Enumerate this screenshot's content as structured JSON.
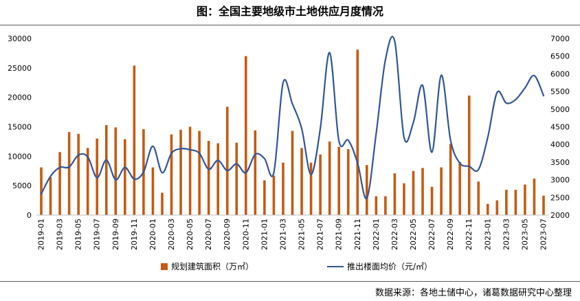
{
  "source": "数据来源：各地土储中心，诸葛数据研究中心整理",
  "chart_data": {
    "type": "bar",
    "title": "图：全国主要地级市土地供应月度情况",
    "x": [
      "2019-01",
      "2019-02",
      "2019-03",
      "2019-04",
      "2019-05",
      "2019-06",
      "2019-07",
      "2019-08",
      "2019-09",
      "2019-10",
      "2019-11",
      "2019-12",
      "2020-01",
      "2020-02",
      "2020-03",
      "2020-04",
      "2020-05",
      "2020-06",
      "2020-07",
      "2020-08",
      "2020-09",
      "2020-10",
      "2020-11",
      "2020-12",
      "2021-01",
      "2021-02",
      "2021-03",
      "2021-04",
      "2021-05",
      "2021-06",
      "2021-07",
      "2021-08",
      "2021-09",
      "2021-10",
      "2021-11",
      "2021-12",
      "2022-01",
      "2022-02",
      "2022-03",
      "2022-04",
      "2022-05",
      "2022-06",
      "2022-07",
      "2022-08",
      "2022-09",
      "2022-10",
      "2022-11",
      "2022-12",
      "2023-01",
      "2023-02",
      "2023-03",
      "2023-04",
      "2023-05",
      "2023-06",
      "2023-07"
    ],
    "y_left": {
      "ylim": [
        0,
        30000
      ],
      "ticks": [
        0,
        5000,
        10000,
        15000,
        20000,
        25000,
        30000
      ]
    },
    "y_right": {
      "ylim": [
        2000,
        7000
      ],
      "ticks": [
        2000,
        2500,
        3000,
        3500,
        4000,
        4500,
        5000,
        5500,
        6000,
        6500,
        7000
      ]
    },
    "series": [
      {
        "name": "规划建筑面积（万㎡）",
        "type": "bar",
        "axis": "left",
        "color": "#C55A11",
        "values": [
          8100,
          6400,
          10700,
          14100,
          13800,
          11400,
          13000,
          15300,
          14900,
          12900,
          25400,
          14600,
          8100,
          3800,
          13700,
          14500,
          15000,
          14300,
          12600,
          12200,
          18400,
          12300,
          27000,
          14400,
          5900,
          6700,
          8900,
          14300,
          11400,
          8900,
          10300,
          12500,
          11600,
          11200,
          28100,
          8500,
          3200,
          3200,
          7100,
          5400,
          7500,
          8000,
          4800,
          8100,
          12100,
          9000,
          20300,
          5700,
          1900,
          2500,
          4300,
          4300,
          5200,
          6200,
          3300
        ]
      },
      {
        "name": "推出楼面均价（元/㎡）",
        "type": "line",
        "axis": "right",
        "color": "#2F5597",
        "values": [
          2600,
          3100,
          3350,
          3360,
          3700,
          3650,
          3060,
          3560,
          3000,
          3350,
          3020,
          3220,
          3950,
          3200,
          3750,
          3880,
          3850,
          3750,
          3300,
          3550,
          3260,
          3450,
          3200,
          3720,
          3600,
          3200,
          5750,
          5150,
          4450,
          3150,
          4450,
          6600,
          4100,
          4120,
          3480,
          2480,
          4300,
          6400,
          6920,
          4200,
          4620,
          5670,
          3780,
          5960,
          4120,
          3470,
          3380,
          3290,
          4200,
          5470,
          5170,
          5270,
          5600,
          5950,
          5380
        ]
      }
    ],
    "legend": "bottom",
    "grid": false
  }
}
